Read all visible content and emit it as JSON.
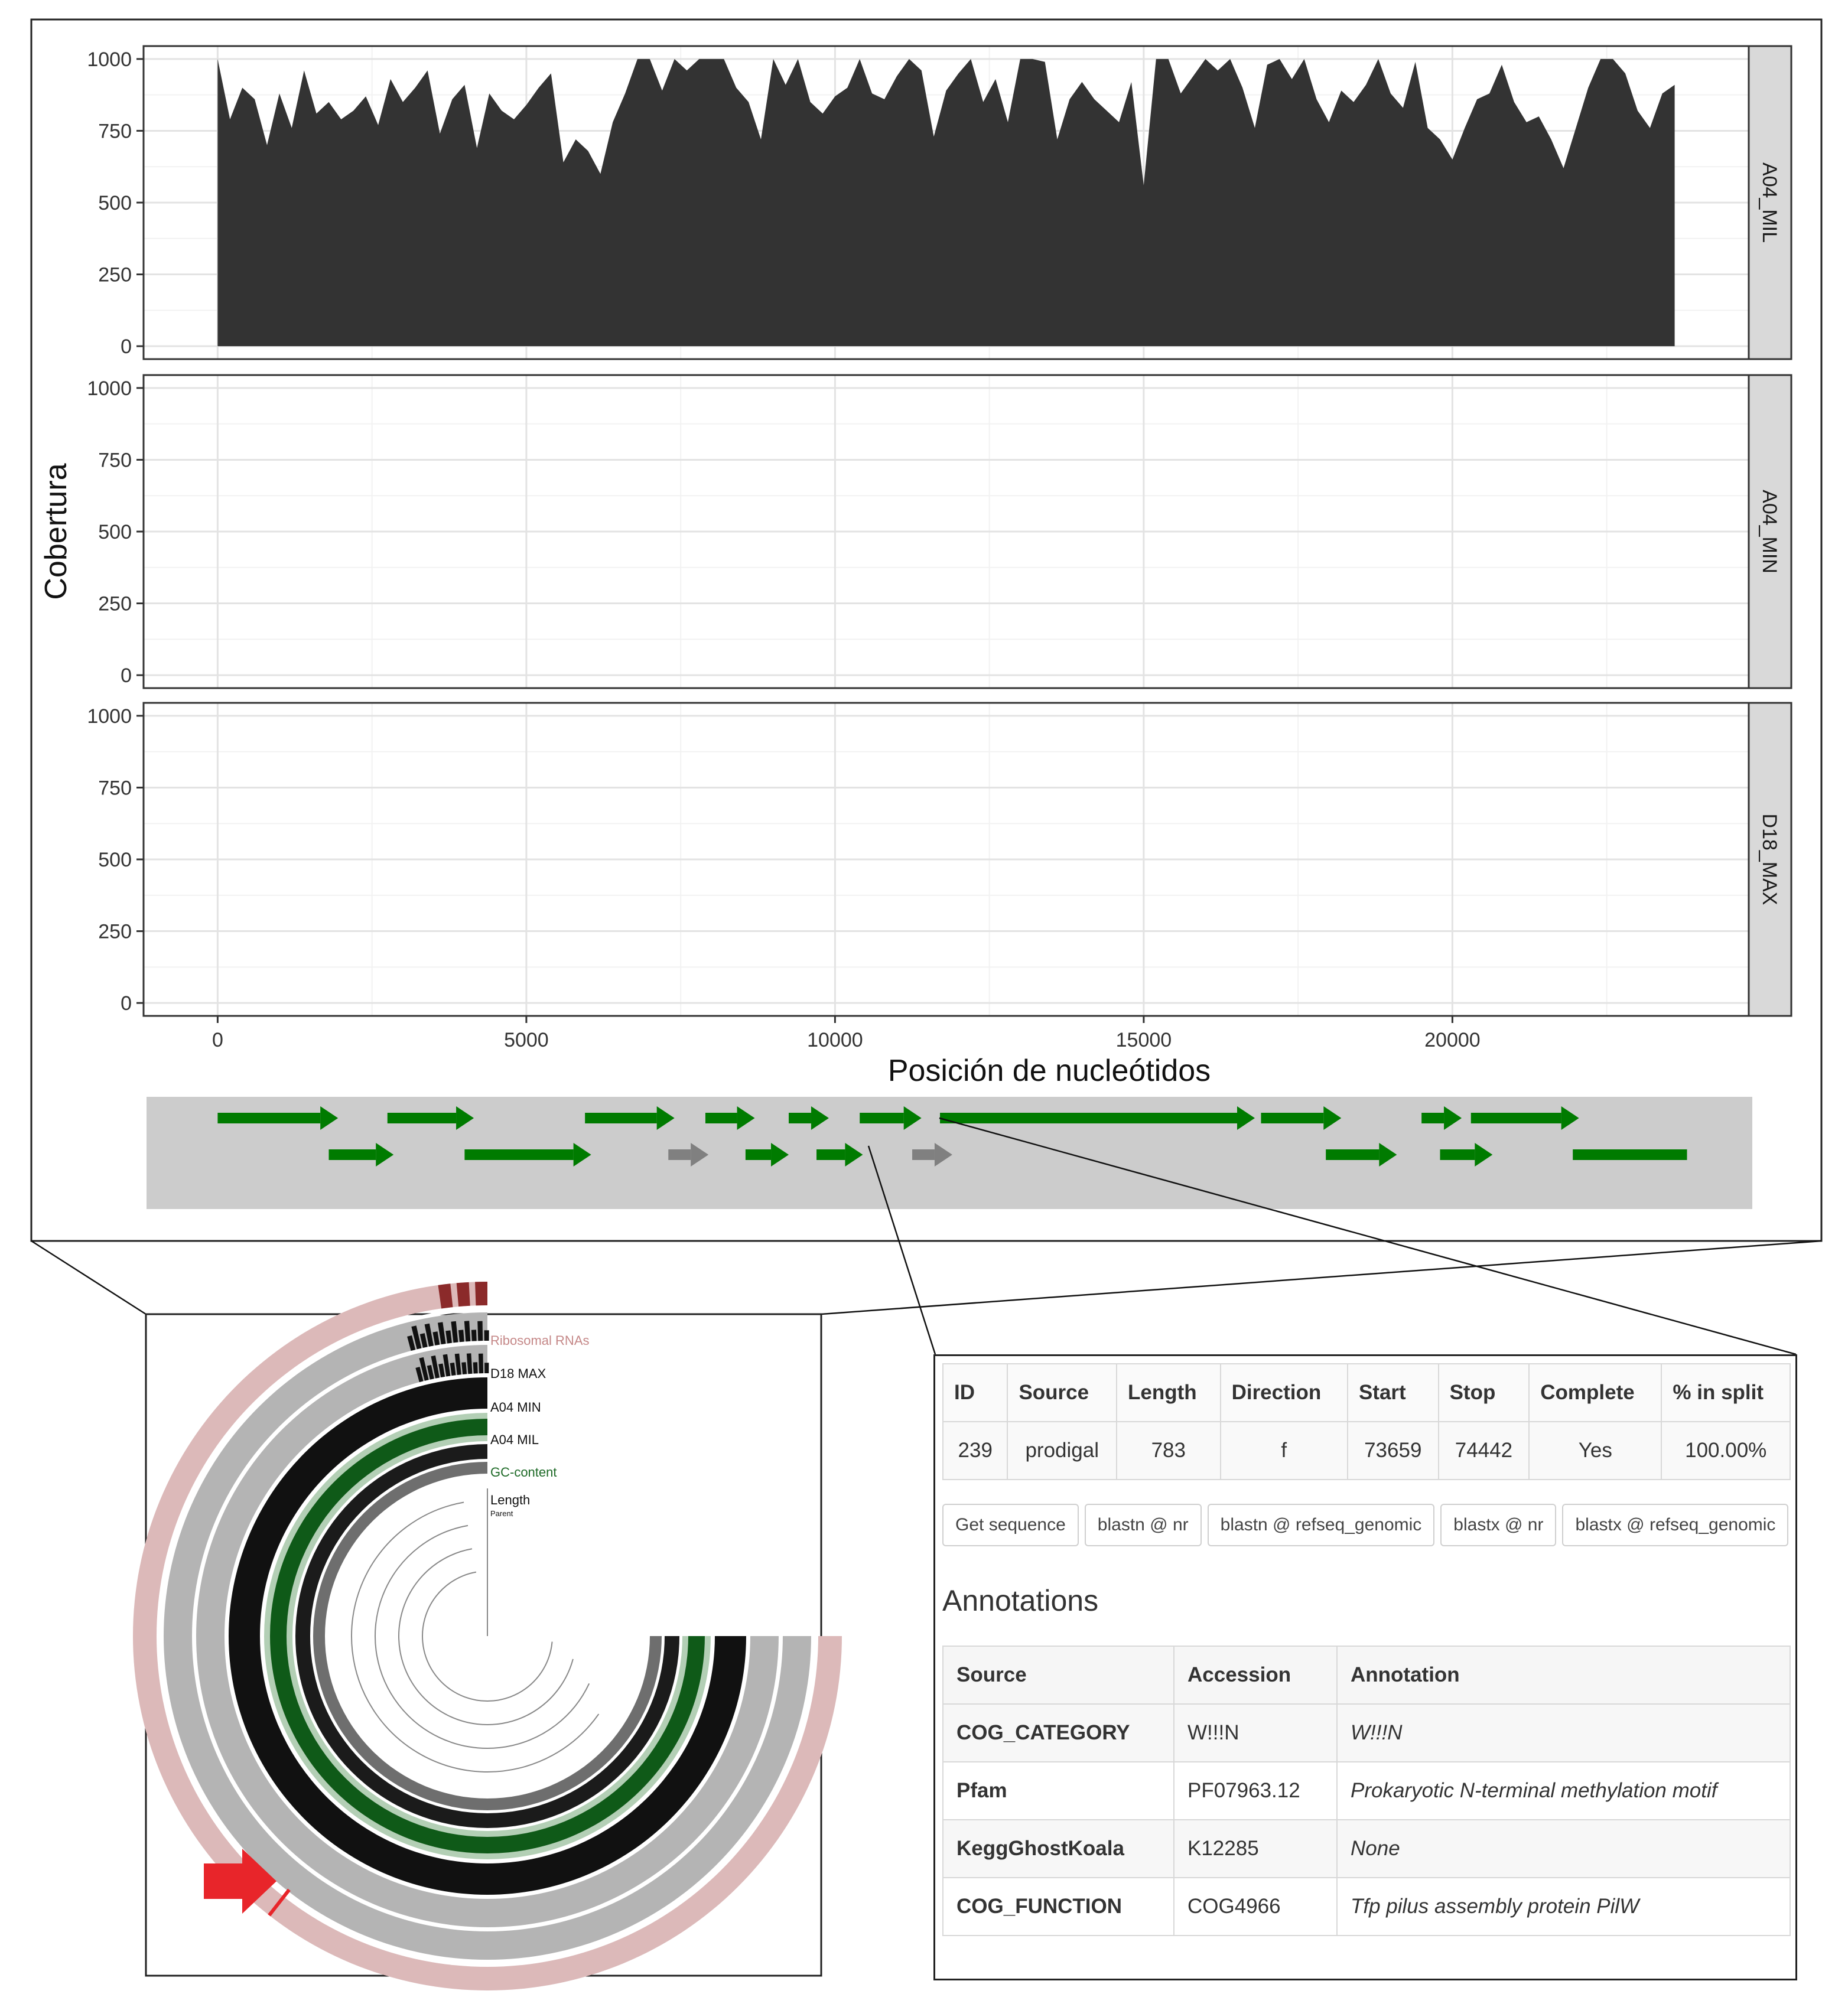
{
  "chart_data": {
    "type": "area",
    "ylabel": "Cobertura",
    "xlabel": "Posición de nucleótidos",
    "xlim": [
      -1200,
      24800
    ],
    "ylim": [
      -45,
      1045
    ],
    "x_ticks": [
      "0",
      "5000",
      "10000",
      "15000",
      "20000"
    ],
    "x_tick_values": [
      0,
      5000,
      10000,
      15000,
      20000
    ],
    "y_ticks": [
      "0",
      "250",
      "500",
      "750",
      "1000"
    ],
    "y_tick_values": [
      0,
      250,
      500,
      750,
      1000
    ],
    "grid": true,
    "fill_color": "#333333",
    "facets": [
      {
        "label": "A04_MIL",
        "x": [
          0,
          200,
          400,
          600,
          800,
          1000,
          1200,
          1400,
          1600,
          1800,
          2000,
          2200,
          2400,
          2600,
          2800,
          3000,
          3200,
          3400,
          3600,
          3800,
          4000,
          4200,
          4400,
          4600,
          4800,
          5000,
          5200,
          5400,
          5600,
          5800,
          6000,
          6200,
          6400,
          6600,
          6800,
          7000,
          7200,
          7400,
          7600,
          7800,
          8000,
          8200,
          8400,
          8600,
          8800,
          9000,
          9200,
          9400,
          9600,
          9800,
          10000,
          10200,
          10400,
          10600,
          10800,
          11000,
          11200,
          11400,
          11600,
          11800,
          12000,
          12200,
          12400,
          12600,
          12800,
          13000,
          13200,
          13400,
          13600,
          13800,
          14000,
          14200,
          14400,
          14600,
          14800,
          15000,
          15200,
          15400,
          15600,
          15800,
          16000,
          16200,
          16400,
          16600,
          16800,
          17000,
          17200,
          17400,
          17600,
          17800,
          18000,
          18200,
          18400,
          18600,
          18800,
          19000,
          19200,
          19400,
          19600,
          19800,
          20000,
          20200,
          20400,
          20600,
          20800,
          21000,
          21200,
          21400,
          21600,
          21800,
          22000,
          22200,
          22400,
          22600,
          22800,
          23000,
          23200,
          23400,
          23600
        ],
        "values": [
          1000,
          790,
          900,
          860,
          700,
          880,
          760,
          960,
          810,
          850,
          790,
          820,
          870,
          770,
          930,
          850,
          900,
          960,
          740,
          860,
          910,
          690,
          880,
          820,
          790,
          840,
          900,
          950,
          640,
          720,
          680,
          600,
          780,
          880,
          1000,
          1000,
          890,
          1000,
          960,
          1000,
          1000,
          1000,
          900,
          850,
          720,
          1000,
          910,
          1000,
          850,
          810,
          870,
          900,
          1000,
          880,
          860,
          940,
          1000,
          960,
          730,
          890,
          950,
          1000,
          850,
          930,
          780,
          1000,
          1000,
          990,
          720,
          860,
          920,
          860,
          820,
          780,
          920,
          560,
          1000,
          1000,
          880,
          940,
          1000,
          960,
          1000,
          900,
          760,
          980,
          1000,
          930,
          1000,
          860,
          780,
          890,
          850,
          910,
          1000,
          880,
          830,
          990,
          760,
          720,
          650,
          760,
          860,
          880,
          980,
          850,
          780,
          800,
          720,
          620,
          760,
          900,
          1000,
          1000,
          950,
          820,
          760,
          880,
          910
        ]
      },
      {
        "label": "A04_MIN",
        "x": [],
        "values": []
      },
      {
        "label": "D18_MAX",
        "x": [],
        "values": []
      }
    ]
  },
  "gene_track": {
    "genes": [
      {
        "start": 0,
        "end": 1950,
        "row": 0,
        "color": "#007b00"
      },
      {
        "start": 2750,
        "end": 4150,
        "row": 0,
        "color": "#007b00"
      },
      {
        "start": 5950,
        "end": 7400,
        "row": 0,
        "color": "#007b00"
      },
      {
        "start": 7900,
        "end": 8700,
        "row": 0,
        "color": "#007b00"
      },
      {
        "start": 9250,
        "end": 9900,
        "row": 0,
        "color": "#007b00"
      },
      {
        "start": 10400,
        "end": 11400,
        "row": 0,
        "color": "#007b00"
      },
      {
        "start": 11700,
        "end": 16800,
        "row": 0,
        "color": "#007b00"
      },
      {
        "start": 16900,
        "end": 18200,
        "row": 0,
        "color": "#007b00"
      },
      {
        "start": 19500,
        "end": 20150,
        "row": 0,
        "color": "#007b00"
      },
      {
        "start": 20300,
        "end": 22050,
        "row": 0,
        "color": "#007b00"
      },
      {
        "start": 1800,
        "end": 2850,
        "row": 1,
        "color": "#007b00"
      },
      {
        "start": 4000,
        "end": 6050,
        "row": 1,
        "color": "#007b00"
      },
      {
        "start": 7300,
        "end": 7950,
        "row": 1,
        "color": "#808080"
      },
      {
        "start": 8550,
        "end": 9250,
        "row": 1,
        "color": "#007b00"
      },
      {
        "start": 9700,
        "end": 10450,
        "row": 1,
        "color": "#007b00"
      },
      {
        "start": 11250,
        "end": 11900,
        "row": 1,
        "color": "#808080"
      },
      {
        "start": 17950,
        "end": 19100,
        "row": 1,
        "color": "#007b00"
      },
      {
        "start": 19800,
        "end": 20650,
        "row": 1,
        "color": "#007b00"
      },
      {
        "start": 21950,
        "end": 23800,
        "row": 1,
        "color": "#007b00",
        "noarrow": true
      }
    ]
  },
  "circular_view": {
    "layers": [
      {
        "label": "Ribosomal RNAs",
        "color": "#8b2a2a",
        "ring_color": "#dcb9b9"
      },
      {
        "label": "D18 MAX",
        "color": "#111111",
        "ring_color": "#b4b4b4"
      },
      {
        "label": "A04 MIN",
        "color": "#111111",
        "ring_color": "#b4b4b4"
      },
      {
        "label": "A04 MIL",
        "color": "#111111",
        "ring_color": "#b4b4b4"
      },
      {
        "label": "GC-content",
        "color": "#0f5a18",
        "ring_color": "#b3cfb5"
      },
      {
        "label": "Length",
        "color": "#555555",
        "ring_color": "#c8c8c8"
      },
      {
        "label": "Parent",
        "color": "#555555",
        "ring_color": "#ffffff"
      }
    ],
    "marker_color": "#e8252a"
  },
  "split_table": {
    "headers": [
      "ID",
      "Source",
      "Length",
      "Direction",
      "Start",
      "Stop",
      "Complete",
      "% in split"
    ],
    "row": [
      "239",
      "prodigal",
      "783",
      "f",
      "73659",
      "74442",
      "Yes",
      "100.00%"
    ]
  },
  "buttons": [
    "Get sequence",
    "blastn @ nr",
    "blastn @ refseq_genomic",
    "blastx @ nr",
    "blastx @ refseq_genomic"
  ],
  "annotations": {
    "title": "Annotations",
    "headers": [
      "Source",
      "Accession",
      "Annotation"
    ],
    "rows": [
      [
        "COG_CATEGORY",
        "W!!!N",
        "W!!!N"
      ],
      [
        "Pfam",
        "PF07963.12",
        "Prokaryotic N-terminal methylation motif"
      ],
      [
        "KeggGhostKoala",
        "K12285",
        "None"
      ],
      [
        "COG_FUNCTION",
        "COG4966",
        "Tfp pilus assembly protein PilW"
      ]
    ],
    "link_color": "#8b2e2e"
  }
}
